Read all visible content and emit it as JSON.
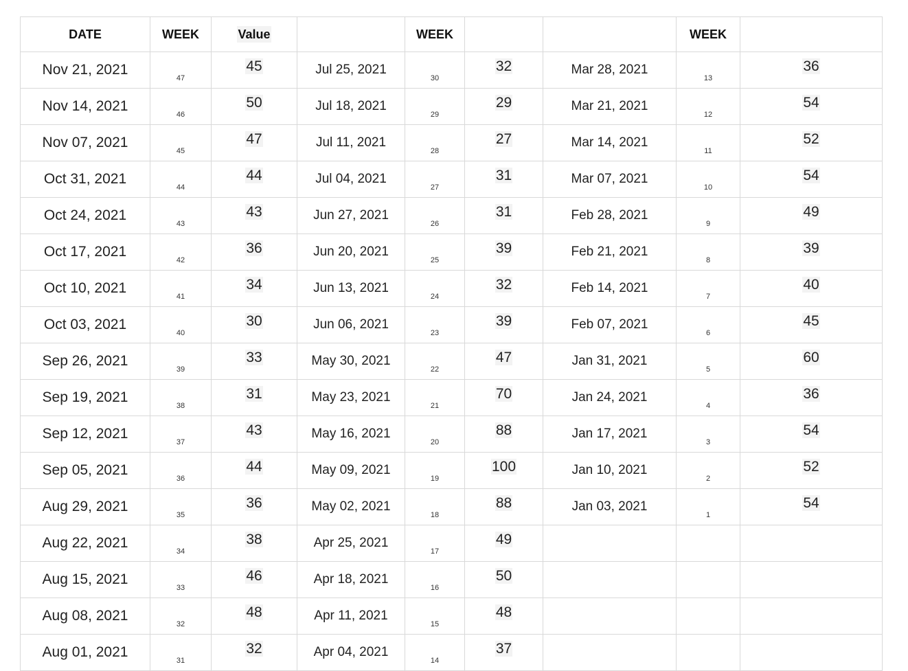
{
  "headers": [
    "DATE",
    "WEEK",
    "Value",
    "",
    "WEEK",
    "",
    "",
    "WEEK",
    ""
  ],
  "groups": [
    {
      "dates": [
        "Nov 21, 2021",
        "Nov 14, 2021",
        "Nov 07, 2021",
        "Oct 31, 2021",
        "Oct 24, 2021",
        "Oct 17, 2021",
        "Oct 10, 2021",
        "Oct 03, 2021",
        "Sep 26, 2021",
        "Sep 19, 2021",
        "Sep 12, 2021",
        "Sep 05, 2021",
        "Aug 29, 2021",
        "Aug 22, 2021",
        "Aug 15, 2021",
        "Aug 08, 2021",
        "Aug 01, 2021"
      ],
      "weeks": [
        "47",
        "46",
        "45",
        "44",
        "43",
        "42",
        "41",
        "40",
        "39",
        "38",
        "37",
        "36",
        "35",
        "34",
        "33",
        "32",
        "31"
      ],
      "values": [
        "45",
        "50",
        "47",
        "44",
        "43",
        "36",
        "34",
        "30",
        "33",
        "31",
        "43",
        "44",
        "36",
        "38",
        "46",
        "48",
        "32"
      ]
    },
    {
      "dates": [
        "Jul 25, 2021",
        "Jul 18, 2021",
        "Jul 11, 2021",
        "Jul 04, 2021",
        "Jun 27, 2021",
        "Jun 20, 2021",
        "Jun 13, 2021",
        "Jun 06, 2021",
        "May 30, 2021",
        "May 23, 2021",
        "May 16, 2021",
        "May 09, 2021",
        "May 02, 2021",
        "Apr 25, 2021",
        "Apr 18, 2021",
        "Apr 11, 2021",
        "Apr 04, 2021"
      ],
      "weeks": [
        "30",
        "29",
        "28",
        "27",
        "26",
        "25",
        "24",
        "23",
        "22",
        "21",
        "20",
        "19",
        "18",
        "17",
        "16",
        "15",
        "14"
      ],
      "values": [
        "32",
        "29",
        "27",
        "31",
        "31",
        "39",
        "32",
        "39",
        "47",
        "70",
        "88",
        "100",
        "88",
        "49",
        "50",
        "48",
        "37"
      ]
    },
    {
      "dates": [
        "Mar 28, 2021",
        "Mar 21, 2021",
        "Mar 14, 2021",
        "Mar 07, 2021",
        "Feb 28, 2021",
        "Feb 21, 2021",
        "Feb 14, 2021",
        "Feb 07, 2021",
        "Jan 31, 2021",
        "Jan 24, 2021",
        "Jan 17, 2021",
        "Jan 10, 2021",
        "Jan 03, 2021"
      ],
      "weeks": [
        "13",
        "12",
        "11",
        "10",
        "9",
        "8",
        "7",
        "6",
        "5",
        "4",
        "3",
        "2",
        "1"
      ],
      "values": [
        "36",
        "54",
        "52",
        "54",
        "49",
        "39",
        "40",
        "45",
        "60",
        "36",
        "54",
        "52",
        "54"
      ]
    }
  ]
}
